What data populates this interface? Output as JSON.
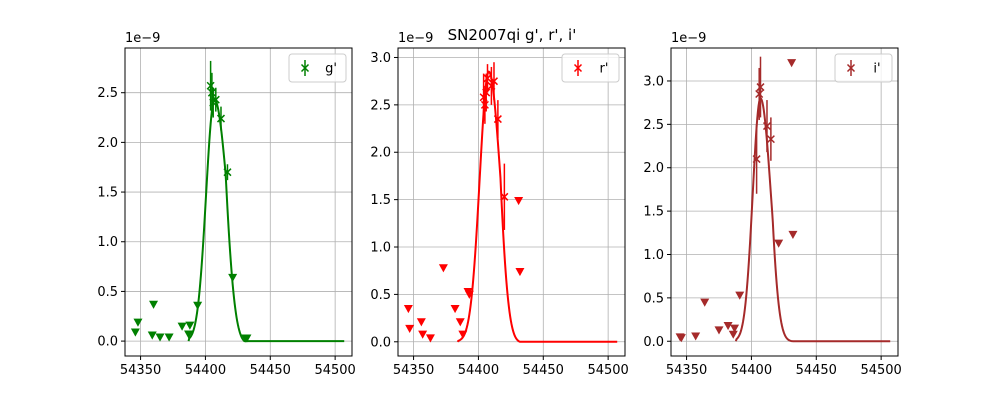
{
  "title": "SN2007qi  g', r', i'",
  "chart_data": [
    {
      "type": "line",
      "band": "g",
      "color": "#008000",
      "legend": "g'",
      "offset_label": "1e−9",
      "xlim": [
        54338,
        54513
      ],
      "ylim": [
        -0.15,
        2.95
      ],
      "xticks": [
        54350,
        54400,
        54450,
        54500
      ],
      "yticks": [
        0.0,
        0.5,
        1.0,
        1.5,
        2.0,
        2.5
      ],
      "grid": true,
      "legend_loc": "upper right",
      "model": {
        "peak_x": 54407,
        "peak_y": 2.43,
        "sigma_rise": 6.5,
        "sigma_fall": 10,
        "end_x": 54430,
        "start_x": 54387,
        "last_x": 54507
      },
      "detections": [
        {
          "x": 54404,
          "y": 2.57,
          "err": 0.25
        },
        {
          "x": 54405,
          "y": 2.5,
          "err": 0.2
        },
        {
          "x": 54406,
          "y": 2.4,
          "err": 0.15
        },
        {
          "x": 54408,
          "y": 2.43,
          "err": 0.12
        },
        {
          "x": 54412,
          "y": 2.24,
          "err": 0.12
        },
        {
          "x": 54417,
          "y": 1.7,
          "err": 0.08
        }
      ],
      "upper_limits": [
        {
          "x": 54346,
          "y": 0.09
        },
        {
          "x": 54348,
          "y": 0.19
        },
        {
          "x": 54359,
          "y": 0.06
        },
        {
          "x": 54360,
          "y": 0.37
        },
        {
          "x": 54365,
          "y": 0.04
        },
        {
          "x": 54372,
          "y": 0.04
        },
        {
          "x": 54382,
          "y": 0.15
        },
        {
          "x": 54387,
          "y": 0.07
        },
        {
          "x": 54388,
          "y": 0.16
        },
        {
          "x": 54394,
          "y": 0.36
        },
        {
          "x": 54421,
          "y": 0.64
        },
        {
          "x": 54431,
          "y": 0.03
        },
        {
          "x": 54432,
          "y": 0.03
        }
      ]
    },
    {
      "type": "line",
      "band": "r",
      "color": "#ff0000",
      "legend": "r'",
      "offset_label": "1e−9",
      "xlim": [
        54338,
        54513
      ],
      "ylim": [
        -0.15,
        3.1
      ],
      "xticks": [
        54350,
        54400,
        54450,
        54500
      ],
      "yticks": [
        0.0,
        0.5,
        1.0,
        1.5,
        2.0,
        2.5,
        3.0
      ],
      "grid": true,
      "legend_loc": "upper right",
      "model": {
        "peak_x": 54408,
        "peak_y": 2.85,
        "sigma_rise": 7,
        "sigma_fall": 9,
        "end_x": 54432,
        "start_x": 54384,
        "last_x": 54507
      },
      "detections": [
        {
          "x": 54404,
          "y": 2.58,
          "err": 0.25
        },
        {
          "x": 54405,
          "y": 2.5,
          "err": 0.2
        },
        {
          "x": 54406,
          "y": 2.63,
          "err": 0.2
        },
        {
          "x": 54407,
          "y": 2.78,
          "err": 0.15
        },
        {
          "x": 54410,
          "y": 2.7,
          "err": 0.2
        },
        {
          "x": 54412,
          "y": 2.75,
          "err": 0.2
        },
        {
          "x": 54415,
          "y": 2.35,
          "err": 0.2
        },
        {
          "x": 54420,
          "y": 1.53,
          "err": 0.35
        }
      ],
      "upper_limits": [
        {
          "x": 54346,
          "y": 0.35
        },
        {
          "x": 54347,
          "y": 0.14
        },
        {
          "x": 54356,
          "y": 0.21
        },
        {
          "x": 54357,
          "y": 0.08
        },
        {
          "x": 54363,
          "y": 0.04
        },
        {
          "x": 54373,
          "y": 0.78
        },
        {
          "x": 54382,
          "y": 0.35
        },
        {
          "x": 54386,
          "y": 0.21
        },
        {
          "x": 54388,
          "y": 0.08
        },
        {
          "x": 54392,
          "y": 0.53
        },
        {
          "x": 54393,
          "y": 0.5
        },
        {
          "x": 54431,
          "y": 1.49
        },
        {
          "x": 54432,
          "y": 0.74
        }
      ]
    },
    {
      "type": "line",
      "band": "i",
      "color": "#a52a2a",
      "legend": "i'",
      "offset_label": "1e−9",
      "xlim": [
        54338,
        54513
      ],
      "ylim": [
        -0.17,
        3.38
      ],
      "xticks": [
        54350,
        54400,
        54450,
        54500
      ],
      "yticks": [
        0.0,
        0.5,
        1.0,
        1.5,
        2.0,
        2.5,
        3.0
      ],
      "grid": true,
      "legend_loc": "upper right",
      "model": {
        "peak_x": 54407,
        "peak_y": 2.8,
        "sigma_rise": 6,
        "sigma_fall": 8,
        "end_x": 54432,
        "start_x": 54388,
        "last_x": 54507
      },
      "detections": [
        {
          "x": 54404,
          "y": 2.1,
          "err": 0.4
        },
        {
          "x": 54406,
          "y": 2.85,
          "err": 0.3
        },
        {
          "x": 54407,
          "y": 2.93,
          "err": 0.35
        },
        {
          "x": 54412,
          "y": 2.48,
          "err": 0.3
        },
        {
          "x": 54415,
          "y": 2.33,
          "err": 0.25
        }
      ],
      "upper_limits": [
        {
          "x": 54345,
          "y": 0.05
        },
        {
          "x": 54346,
          "y": 0.04
        },
        {
          "x": 54357,
          "y": 0.06
        },
        {
          "x": 54364,
          "y": 0.45
        },
        {
          "x": 54375,
          "y": 0.13
        },
        {
          "x": 54382,
          "y": 0.18
        },
        {
          "x": 54386,
          "y": 0.08
        },
        {
          "x": 54387,
          "y": 0.15
        },
        {
          "x": 54391,
          "y": 0.53
        },
        {
          "x": 54421,
          "y": 1.13
        },
        {
          "x": 54431,
          "y": 3.21
        },
        {
          "x": 54432,
          "y": 1.23
        }
      ]
    }
  ]
}
